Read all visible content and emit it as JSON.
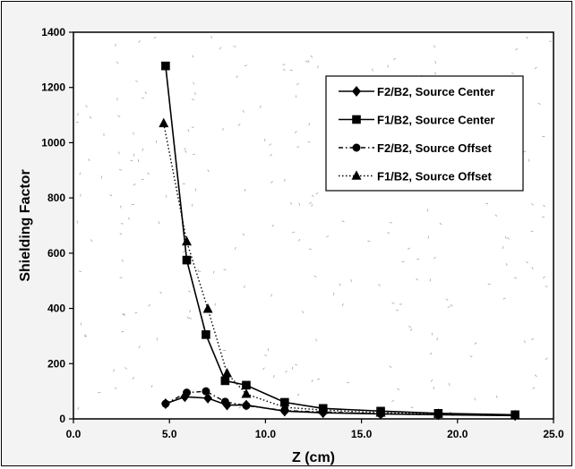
{
  "chart_data": {
    "type": "line",
    "xlabel": "Z (cm)",
    "ylabel": "Shielding Factor",
    "xlim": [
      0,
      25
    ],
    "ylim": [
      0,
      1400
    ],
    "x_ticks": [
      "0.0",
      "5.0",
      "10.0",
      "15.0",
      "20.0",
      "25.0"
    ],
    "y_ticks": [
      "0",
      "200",
      "400",
      "600",
      "800",
      "1000",
      "1200",
      "1400"
    ],
    "x_tick_values": [
      0,
      5,
      10,
      15,
      20,
      25
    ],
    "y_tick_values": [
      0,
      200,
      400,
      600,
      800,
      1000,
      1200,
      1400
    ],
    "legend_position": "top-right",
    "grid": false,
    "series": [
      {
        "name": "F2/B2, Source Center",
        "marker": "diamond",
        "line": "solid",
        "color": "#000000",
        "points": [
          [
            4.8,
            55
          ],
          [
            5.8,
            80
          ],
          [
            7.0,
            75
          ],
          [
            8.0,
            50
          ],
          [
            9.0,
            50
          ],
          [
            11.0,
            28
          ],
          [
            13.0,
            22
          ],
          [
            16.0,
            18
          ],
          [
            19.0,
            15
          ],
          [
            23.0,
            12
          ]
        ]
      },
      {
        "name": "F1/B2, Source Center",
        "marker": "square",
        "line": "solid",
        "color": "#000000",
        "points": [
          [
            4.8,
            1278
          ],
          [
            5.9,
            575
          ],
          [
            6.9,
            305
          ],
          [
            7.9,
            138
          ],
          [
            9.0,
            122
          ],
          [
            11.0,
            60
          ],
          [
            13.0,
            38
          ],
          [
            16.0,
            28
          ],
          [
            19.0,
            20
          ],
          [
            23.0,
            15
          ]
        ]
      },
      {
        "name": "F2/B2, Source Offset",
        "marker": "circle",
        "line": "dash-dot",
        "color": "#000000",
        "points": [
          [
            4.8,
            55
          ],
          [
            5.9,
            95
          ],
          [
            6.9,
            100
          ],
          [
            7.9,
            62
          ],
          [
            9.0,
            48
          ],
          [
            11.0,
            30
          ],
          [
            13.0,
            25
          ],
          [
            16.0,
            18
          ],
          [
            19.0,
            15
          ],
          [
            23.0,
            12
          ]
        ]
      },
      {
        "name": "F1/B2, Source Offset",
        "marker": "triangle",
        "line": "dotted",
        "color": "#000000",
        "points": [
          [
            4.7,
            1070
          ],
          [
            5.9,
            642
          ],
          [
            7.0,
            398
          ],
          [
            8.0,
            165
          ],
          [
            9.0,
            90
          ],
          [
            11.0,
            42
          ],
          [
            13.0,
            32
          ],
          [
            16.0,
            22
          ],
          [
            19.0,
            18
          ],
          [
            23.0,
            13
          ]
        ]
      }
    ]
  }
}
